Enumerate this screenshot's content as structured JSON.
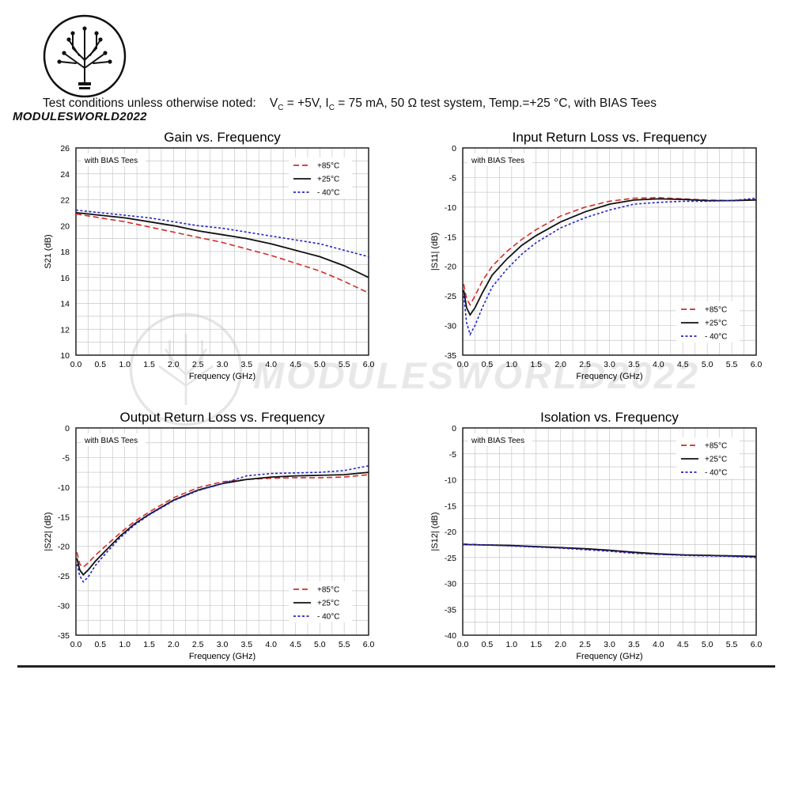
{
  "header": {
    "conditions_prefix": "Test conditions unless otherwise noted:",
    "vc": "V",
    "vc_sub": "C",
    "vc_val": " = +5V, ",
    "ic": "I",
    "ic_sub": "C",
    "ic_val": " = 75 mA, 50 Ω test system, Temp.=+25 °C, with BIAS Tees",
    "brand": "MODULESWORLD2022",
    "watermark": "MODULESWORLD2022"
  },
  "colors": {
    "hot": "#d42a2a",
    "room": "#111111",
    "cold": "#2424c4",
    "grid": "#c8c8c8"
  },
  "chart_data": [
    {
      "id": "gain",
      "type": "line",
      "title": "Gain vs. Frequency",
      "xlabel": "Frequency (GHz)",
      "ylabel": "S21 (dB)",
      "note": "with BIAS Tees",
      "xlim": [
        0,
        6
      ],
      "ylim": [
        10,
        26
      ],
      "xticks": [
        "0.0",
        "0.5",
        "1.0",
        "1.5",
        "2.0",
        "2.5",
        "3.0",
        "3.5",
        "4.0",
        "4.5",
        "5.0",
        "5.5",
        "6.0"
      ],
      "yticks": [
        "10",
        "12",
        "14",
        "16",
        "18",
        "20",
        "22",
        "24",
        "26"
      ],
      "grid": true,
      "legend": "top-right",
      "series": [
        {
          "name": "+85°C",
          "style": "hot",
          "x": [
            0,
            0.5,
            1,
            1.5,
            2,
            2.5,
            3,
            3.5,
            4,
            4.5,
            5,
            5.5,
            6
          ],
          "y": [
            20.9,
            20.6,
            20.3,
            19.9,
            19.5,
            19.1,
            18.7,
            18.2,
            17.7,
            17.1,
            16.5,
            15.7,
            14.8
          ]
        },
        {
          "name": "+25°C",
          "style": "room",
          "x": [
            0,
            0.5,
            1,
            1.5,
            2,
            2.5,
            3,
            3.5,
            4,
            4.5,
            5,
            5.5,
            6
          ],
          "y": [
            21.0,
            20.8,
            20.6,
            20.3,
            20.0,
            19.6,
            19.3,
            19.0,
            18.6,
            18.1,
            17.6,
            16.9,
            16.0
          ]
        },
        {
          "name": "- 40°C",
          "style": "cold",
          "x": [
            0,
            0.5,
            1,
            1.5,
            2,
            2.5,
            3,
            3.5,
            4,
            4.5,
            5,
            5.5,
            6
          ],
          "y": [
            21.2,
            21.0,
            20.8,
            20.6,
            20.3,
            20.0,
            19.8,
            19.5,
            19.2,
            18.9,
            18.6,
            18.1,
            17.6
          ]
        }
      ]
    },
    {
      "id": "s11",
      "type": "line",
      "title": "Input Return Loss vs. Frequency",
      "xlabel": "Frequency (GHz)",
      "ylabel": "|S11| (dB)",
      "note": "with BIAS Tees",
      "xlim": [
        0,
        6
      ],
      "ylim": [
        -35,
        0
      ],
      "xticks": [
        "0.0",
        "0.5",
        "1.0",
        "1.5",
        "2.0",
        "2.5",
        "3.0",
        "3.5",
        "4.0",
        "4.5",
        "5.0",
        "5.5",
        "6.0"
      ],
      "yticks": [
        "-35",
        "-30",
        "-25",
        "-20",
        "-15",
        "-10",
        "-5",
        "0"
      ],
      "grid": true,
      "legend": "bottom-right",
      "series": [
        {
          "name": "+85°C",
          "style": "hot",
          "x": [
            0.02,
            0.08,
            0.15,
            0.25,
            0.4,
            0.6,
            0.9,
            1.2,
            1.5,
            2,
            2.5,
            3,
            3.5,
            4,
            4.5,
            5,
            5.5,
            6
          ],
          "y": [
            -23,
            -25.5,
            -26.5,
            -25,
            -22.5,
            -20,
            -17.5,
            -15.5,
            -13.8,
            -11.5,
            -10,
            -9,
            -8.5,
            -8.4,
            -8.6,
            -8.8,
            -8.9,
            -8.7
          ]
        },
        {
          "name": "+25°C",
          "style": "room",
          "x": [
            0.02,
            0.08,
            0.15,
            0.25,
            0.4,
            0.6,
            0.9,
            1.2,
            1.5,
            2,
            2.5,
            3,
            3.5,
            4,
            4.5,
            5,
            5.5,
            6
          ],
          "y": [
            -24,
            -27,
            -28.2,
            -27,
            -24.5,
            -21.5,
            -18.8,
            -16.5,
            -14.8,
            -12.5,
            -10.8,
            -9.5,
            -8.8,
            -8.6,
            -8.7,
            -8.9,
            -8.9,
            -8.8
          ]
        },
        {
          "name": "- 40°C",
          "style": "cold",
          "x": [
            0.02,
            0.08,
            0.15,
            0.25,
            0.4,
            0.6,
            0.9,
            1.2,
            1.5,
            2,
            2.5,
            3,
            3.5,
            4,
            4.5,
            5,
            5.5,
            6
          ],
          "y": [
            -25,
            -29.5,
            -31.5,
            -30,
            -27,
            -23.5,
            -20.5,
            -18,
            -16,
            -13.5,
            -11.8,
            -10.5,
            -9.5,
            -9.2,
            -9,
            -9,
            -8.9,
            -8.5
          ]
        }
      ]
    },
    {
      "id": "s22",
      "type": "line",
      "title": "Output Return Loss vs. Frequency",
      "xlabel": "Frequency (GHz)",
      "ylabel": "|S22| (dB)",
      "note": "with BIAS Tees",
      "xlim": [
        0,
        6
      ],
      "ylim": [
        -35,
        0
      ],
      "xticks": [
        "0.0",
        "0.5",
        "1.0",
        "1.5",
        "2.0",
        "2.5",
        "3.0",
        "3.5",
        "4.0",
        "4.5",
        "5.0",
        "5.5",
        "6.0"
      ],
      "yticks": [
        "-35",
        "-30",
        "-25",
        "-20",
        "-15",
        "-10",
        "-5",
        "0"
      ],
      "grid": true,
      "legend": "bottom-right",
      "series": [
        {
          "name": "+85°C",
          "style": "hot",
          "x": [
            0.02,
            0.08,
            0.15,
            0.25,
            0.4,
            0.6,
            0.9,
            1.2,
            1.5,
            2,
            2.5,
            3,
            3.5,
            4,
            4.5,
            5,
            5.5,
            6
          ],
          "y": [
            -21,
            -23,
            -23.5,
            -22.8,
            -21.5,
            -20,
            -17.8,
            -15.8,
            -14.2,
            -11.8,
            -10.1,
            -9.1,
            -8.7,
            -8.5,
            -8.4,
            -8.4,
            -8.3,
            -7.9
          ]
        },
        {
          "name": "+25°C",
          "style": "room",
          "x": [
            0.02,
            0.08,
            0.15,
            0.25,
            0.4,
            0.6,
            0.9,
            1.2,
            1.5,
            2,
            2.5,
            3,
            3.5,
            4,
            4.5,
            5,
            5.5,
            6
          ],
          "y": [
            -22,
            -24,
            -24.8,
            -24,
            -22.5,
            -20.8,
            -18.3,
            -16.2,
            -14.6,
            -12.2,
            -10.5,
            -9.4,
            -8.7,
            -8.3,
            -8.1,
            -8,
            -7.9,
            -7.5
          ]
        },
        {
          "name": "- 40°C",
          "style": "cold",
          "x": [
            0.02,
            0.08,
            0.15,
            0.25,
            0.4,
            0.6,
            0.9,
            1.2,
            1.5,
            2,
            2.5,
            3,
            3.5,
            4,
            4.5,
            5,
            5.5,
            6
          ],
          "y": [
            -23,
            -25,
            -26,
            -25.2,
            -23.2,
            -21.3,
            -18.6,
            -16.4,
            -14.7,
            -12.3,
            -10.6,
            -9.4,
            -8.1,
            -7.7,
            -7.6,
            -7.5,
            -7.2,
            -6.4
          ]
        }
      ]
    },
    {
      "id": "s12",
      "type": "line",
      "title": "Isolation vs. Frequency",
      "xlabel": "Frequency (GHz)",
      "ylabel": "|S12| (dB)",
      "note": "with BIAS Tees",
      "xlim": [
        0,
        6
      ],
      "ylim": [
        -40,
        0
      ],
      "xticks": [
        "0.0",
        "0.5",
        "1.0",
        "1.5",
        "2.0",
        "2.5",
        "3.0",
        "3.5",
        "4.0",
        "4.5",
        "5.0",
        "5.5",
        "6.0"
      ],
      "yticks": [
        "-40",
        "-35",
        "-30",
        "-25",
        "-20",
        "-15",
        "-10",
        "-5",
        "0"
      ],
      "grid": true,
      "legend": "top-right",
      "series": [
        {
          "name": "+85°C",
          "style": "hot",
          "x": [
            0,
            0.5,
            1,
            1.5,
            2,
            2.5,
            3,
            3.5,
            4,
            4.5,
            5,
            5.5,
            6
          ],
          "y": [
            -22.4,
            -22.6,
            -22.7,
            -22.9,
            -23.1,
            -23.4,
            -23.7,
            -24.1,
            -24.4,
            -24.5,
            -24.6,
            -24.7,
            -24.9
          ]
        },
        {
          "name": "+25°C",
          "style": "room",
          "x": [
            0,
            0.5,
            1,
            1.5,
            2,
            2.5,
            3,
            3.5,
            4,
            4.5,
            5,
            5.5,
            6
          ],
          "y": [
            -22.5,
            -22.6,
            -22.7,
            -22.9,
            -23.1,
            -23.3,
            -23.6,
            -24.0,
            -24.3,
            -24.5,
            -24.6,
            -24.7,
            -24.8
          ]
        },
        {
          "name": "- 40°C",
          "style": "cold",
          "x": [
            0,
            0.5,
            1,
            1.5,
            2,
            2.5,
            3,
            3.5,
            4,
            4.5,
            5,
            5.5,
            6
          ],
          "y": [
            -22.5,
            -22.6,
            -22.8,
            -23.0,
            -23.2,
            -23.5,
            -23.8,
            -24.2,
            -24.4,
            -24.6,
            -24.7,
            -24.8,
            -25.0
          ]
        }
      ]
    }
  ]
}
